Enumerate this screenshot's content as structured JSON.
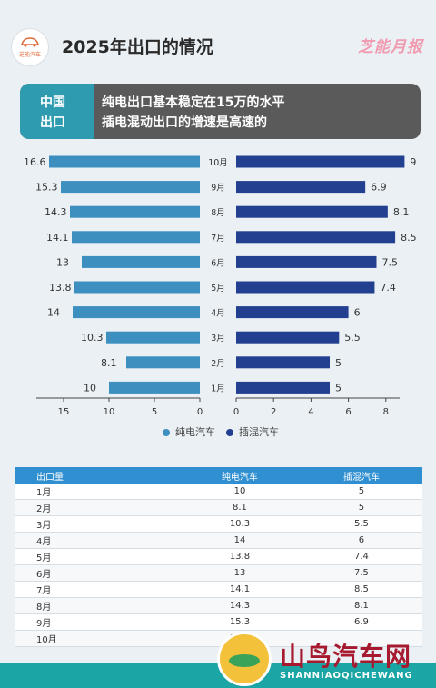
{
  "header": {
    "logo_text": "芝能汽车",
    "title": "2025年出口的情况",
    "brand": "芝能月报"
  },
  "banner": {
    "label_line1": "中国",
    "label_line2": "出口",
    "text_line1": "纯电出口基本稳定在15万的水平",
    "text_line2": "插电混动出口的增速是高速的"
  },
  "colors": {
    "bev": "#3d8fc0",
    "phev": "#233f8f",
    "banner_left": "#2f9bb0",
    "footer": "#1ba5a4"
  },
  "chart_data": {
    "type": "bar",
    "orientation": "horizontal",
    "categories": [
      "10月",
      "9月",
      "8月",
      "7月",
      "6月",
      "5月",
      "4月",
      "3月",
      "2月",
      "1月"
    ],
    "series": [
      {
        "name": "纯电汽车",
        "values": [
          16.6,
          15.3,
          14.3,
          14.1,
          13,
          13.8,
          14,
          10.3,
          8.1,
          10
        ],
        "value_labels": [
          "16.6",
          "15.3",
          "14.3",
          "14.1",
          "13",
          "13.8",
          "14",
          "10.3",
          "8.1",
          "10"
        ],
        "xlim": [
          0,
          16.6
        ],
        "ticks": [
          15,
          10,
          5,
          0
        ]
      },
      {
        "name": "插混汽车",
        "values": [
          9,
          6.9,
          8.1,
          8.5,
          7.5,
          7.4,
          6,
          5.5,
          5,
          5
        ],
        "value_labels": [
          "9",
          "6.9",
          "8.1",
          "8.5",
          "7.5",
          "7.4",
          "6",
          "5.5",
          "5",
          "5"
        ],
        "xlim": [
          0,
          9
        ],
        "ticks": [
          0,
          2,
          4,
          6,
          8
        ]
      }
    ],
    "legend": [
      "纯电汽车",
      "插混汽车"
    ],
    "legend_position": "bottom"
  },
  "table": {
    "headers": [
      "出口量",
      "纯电汽车",
      "插混汽车"
    ],
    "rows": [
      [
        "1月",
        "10",
        "5"
      ],
      [
        "2月",
        "8.1",
        "5"
      ],
      [
        "3月",
        "10.3",
        "5.5"
      ],
      [
        "4月",
        "14",
        "6"
      ],
      [
        "5月",
        "13.8",
        "7.4"
      ],
      [
        "6月",
        "13",
        "7.5"
      ],
      [
        "7月",
        "14.1",
        "8.5"
      ],
      [
        "8月",
        "14.3",
        "8.1"
      ],
      [
        "9月",
        "15.3",
        "6.9"
      ],
      [
        "10月",
        "16.6",
        ""
      ]
    ]
  },
  "watermark": {
    "title": "山鸟汽车网",
    "subtitle": "SHANNIAOQICHEWANG"
  }
}
